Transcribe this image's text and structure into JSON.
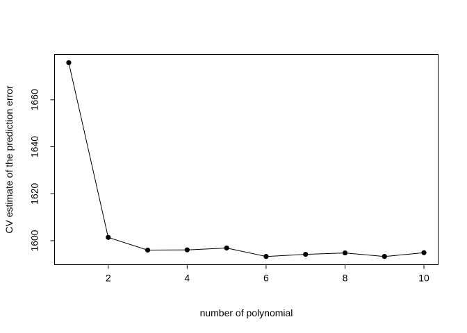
{
  "chart_data": {
    "type": "line",
    "title": "",
    "xlabel": "number of polynomial",
    "ylabel": "CV estimate of the prediction error",
    "x": [
      1,
      2,
      3,
      4,
      5,
      6,
      7,
      8,
      9,
      10
    ],
    "series": [
      {
        "values": [
          1675.8,
          1601.4,
          1596.0,
          1596.1,
          1596.9,
          1593.3,
          1594.2,
          1594.8,
          1593.3,
          1594.9
        ],
        "marker": "filled-circle",
        "color": "#000000"
      }
    ],
    "xlim": [
      0.64,
      10.36
    ],
    "ylim": [
      1589.8,
      1679.3
    ],
    "xticks": [
      2,
      4,
      6,
      8,
      10
    ],
    "yticks": [
      1600,
      1620,
      1640,
      1660
    ],
    "grid": false,
    "legend": "none"
  }
}
